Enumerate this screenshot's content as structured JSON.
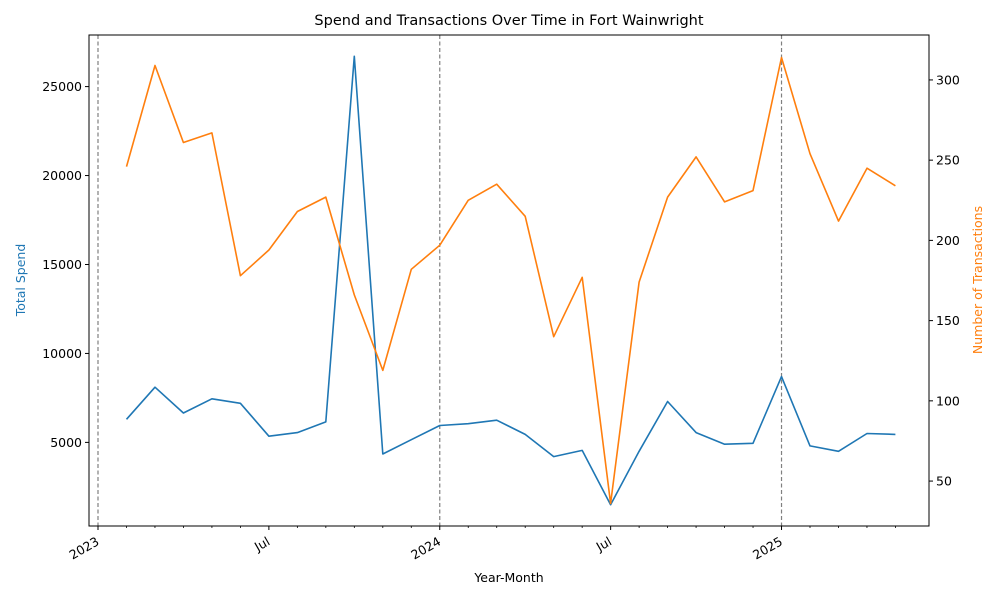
{
  "chart_data": {
    "type": "line",
    "title": "Spend and Transactions Over Time in Fort Wainwright",
    "xlabel": "Year-Month",
    "x": [
      "2023-02",
      "2023-03",
      "2023-04",
      "2023-05",
      "2023-06",
      "2023-07",
      "2023-08",
      "2023-09",
      "2023-10",
      "2023-11",
      "2023-12",
      "2024-01",
      "2024-02",
      "2024-03",
      "2024-04",
      "2024-05",
      "2024-06",
      "2024-07",
      "2024-08",
      "2024-09",
      "2024-10",
      "2024-11",
      "2024-12",
      "2025-01",
      "2025-02",
      "2025-03",
      "2025-04",
      "2025-05"
    ],
    "x_ticks": [
      {
        "date": "2023-01",
        "label": "2023"
      },
      {
        "date": "2023-07",
        "label": "Jul"
      },
      {
        "date": "2024-01",
        "label": "2024"
      },
      {
        "date": "2024-07",
        "label": "Jul"
      },
      {
        "date": "2025-01",
        "label": "2025"
      }
    ],
    "year_lines": [
      "2023-01",
      "2024-01",
      "2025-01"
    ],
    "grid": false,
    "legend": "none",
    "series": [
      {
        "name": "Total Spend",
        "axis": "left",
        "color": "#1f77b4",
        "values": [
          6300,
          8100,
          6650,
          7450,
          7200,
          5350,
          5550,
          6150,
          26700,
          4350,
          5150,
          5950,
          6050,
          6250,
          5450,
          4200,
          4550,
          1500,
          4500,
          7300,
          5550,
          4900,
          4950,
          8700,
          4800,
          4500,
          5500,
          5450
        ]
      },
      {
        "name": "Number of Transactions",
        "axis": "right",
        "color": "#ff7f0e",
        "values": [
          246,
          309,
          261,
          267,
          178,
          194,
          218,
          227,
          166,
          119,
          182,
          197,
          225,
          235,
          215,
          140,
          177,
          36,
          174,
          227,
          252,
          224,
          231,
          314,
          254,
          212,
          245,
          234
        ]
      }
    ],
    "y_left": {
      "label": "Total Spend",
      "lim": [
        300,
        27900
      ],
      "ticks": [
        5000,
        10000,
        15000,
        20000,
        25000
      ]
    },
    "y_right": {
      "label": "Number of Transactions",
      "lim": [
        22,
        328
      ],
      "ticks": [
        50,
        100,
        150,
        200,
        250,
        300
      ]
    }
  }
}
